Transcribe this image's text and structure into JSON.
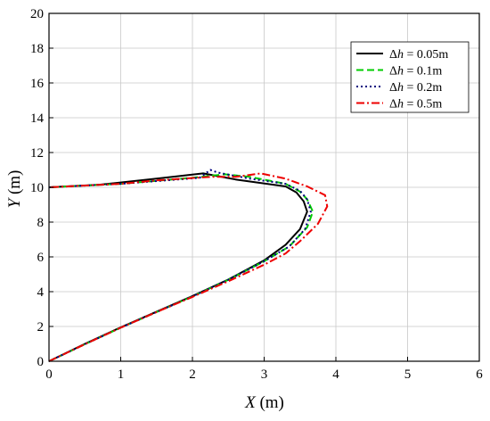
{
  "chart_data": {
    "type": "line",
    "title": "",
    "xlabel": {
      "var": "X",
      "unit": " (m)"
    },
    "ylabel": {
      "var": "Y",
      "unit": " (m)"
    },
    "xlim": [
      0,
      6
    ],
    "ylim": [
      0,
      20
    ],
    "xticks": [
      "0",
      "1",
      "2",
      "3",
      "4",
      "5",
      "6"
    ],
    "yticks": [
      "0",
      "2",
      "4",
      "6",
      "8",
      "10",
      "12",
      "14",
      "16",
      "18",
      "20"
    ],
    "grid": true,
    "legend": {
      "placement": "top-right"
    },
    "series": [
      {
        "name": "Δh = 0.05m",
        "label_parts": {
          "delta": "Δ",
          "var": "h",
          "rest": " = 0.05m"
        },
        "color": "#000000",
        "dash": "solid",
        "points": [
          [
            0,
            0
          ],
          [
            0.5,
            1.0
          ],
          [
            1.0,
            1.95
          ],
          [
            1.5,
            2.85
          ],
          [
            2.0,
            3.75
          ],
          [
            2.5,
            4.7
          ],
          [
            3.0,
            5.8
          ],
          [
            3.3,
            6.7
          ],
          [
            3.5,
            7.6
          ],
          [
            3.6,
            8.6
          ],
          [
            3.55,
            9.2
          ],
          [
            3.45,
            9.7
          ],
          [
            3.3,
            10.05
          ],
          [
            2.6,
            10.45
          ],
          [
            2.15,
            10.8
          ],
          [
            1.5,
            10.5
          ],
          [
            0.7,
            10.15
          ],
          [
            0,
            10.0
          ]
        ]
      },
      {
        "name": "Δh = 0.1m",
        "label_parts": {
          "delta": "Δ",
          "var": "h",
          "rest": " = 0.1m"
        },
        "color": "#00cc00",
        "dash": "long-dash",
        "points": [
          [
            0,
            0
          ],
          [
            0.5,
            0.98
          ],
          [
            1.0,
            1.93
          ],
          [
            1.5,
            2.83
          ],
          [
            2.0,
            3.73
          ],
          [
            2.5,
            4.68
          ],
          [
            3.0,
            5.75
          ],
          [
            3.35,
            6.6
          ],
          [
            3.6,
            7.7
          ],
          [
            3.68,
            8.6
          ],
          [
            3.6,
            9.3
          ],
          [
            3.5,
            9.75
          ],
          [
            3.3,
            10.2
          ],
          [
            2.8,
            10.6
          ],
          [
            2.45,
            10.75
          ],
          [
            2.0,
            10.55
          ],
          [
            1.0,
            10.2
          ],
          [
            0,
            10.0
          ]
        ]
      },
      {
        "name": "Δh = 0.2m",
        "label_parts": {
          "delta": "Δ",
          "var": "h",
          "rest": " = 0.2m"
        },
        "color": "#000080",
        "dash": "dotted",
        "points": [
          [
            0,
            0
          ],
          [
            0.5,
            0.98
          ],
          [
            1.0,
            1.93
          ],
          [
            1.5,
            2.83
          ],
          [
            2.0,
            3.73
          ],
          [
            2.5,
            4.68
          ],
          [
            3.0,
            5.75
          ],
          [
            3.35,
            6.6
          ],
          [
            3.57,
            7.6
          ],
          [
            3.65,
            8.6
          ],
          [
            3.6,
            9.3
          ],
          [
            3.5,
            9.8
          ],
          [
            3.3,
            10.2
          ],
          [
            2.8,
            10.5
          ],
          [
            2.35,
            10.85
          ],
          [
            2.25,
            11.0
          ],
          [
            2.1,
            10.55
          ],
          [
            1.0,
            10.2
          ],
          [
            0,
            10.0
          ]
        ]
      },
      {
        "name": "Δh = 0.5m",
        "label_parts": {
          "delta": "Δ",
          "var": "h",
          "rest": " = 0.5m"
        },
        "color": "#ee0000",
        "dash": "dash-dot",
        "points": [
          [
            0,
            0
          ],
          [
            0.5,
            0.98
          ],
          [
            1.0,
            1.93
          ],
          [
            1.5,
            2.83
          ],
          [
            2.0,
            3.7
          ],
          [
            2.5,
            4.6
          ],
          [
            3.0,
            5.55
          ],
          [
            3.3,
            6.2
          ],
          [
            3.5,
            6.9
          ],
          [
            3.75,
            7.9
          ],
          [
            3.88,
            8.9
          ],
          [
            3.85,
            9.55
          ],
          [
            3.6,
            10.05
          ],
          [
            3.3,
            10.5
          ],
          [
            2.95,
            10.8
          ],
          [
            2.6,
            10.6
          ],
          [
            2.25,
            10.6
          ],
          [
            1.5,
            10.4
          ],
          [
            1.0,
            10.2
          ],
          [
            0,
            10.0
          ]
        ]
      }
    ]
  }
}
